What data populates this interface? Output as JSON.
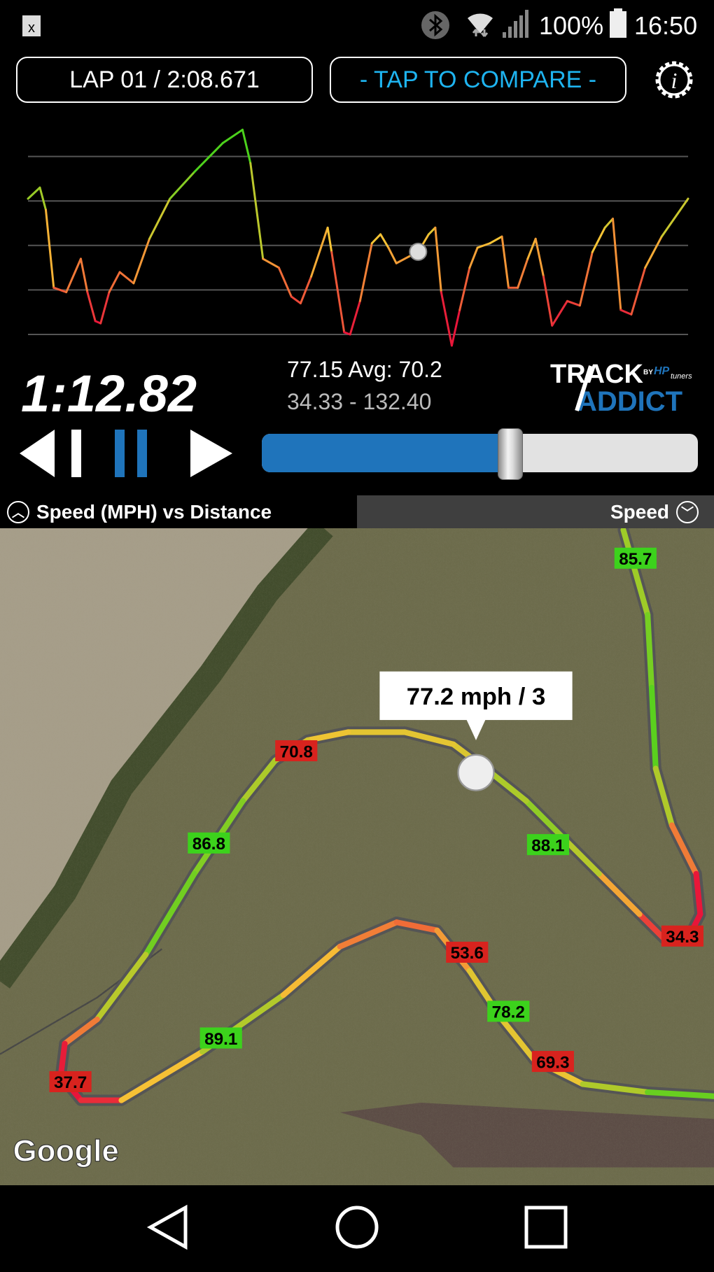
{
  "status_bar": {
    "battery": "100%",
    "time": "16:50",
    "icons": [
      "notification-x-icon",
      "bluetooth-icon",
      "wifi-icon",
      "signal-icon",
      "battery-icon"
    ]
  },
  "toolbar": {
    "lap_label": "LAP 01 / 2:08.671",
    "compare_label": "- TAP TO COMPARE -",
    "settings_icon": "gear-info-icon"
  },
  "chart_data": {
    "type": "line",
    "xlabel": "",
    "ylabel": "",
    "ylim": [
      34.33,
      132.4
    ],
    "gridlines": [
      40,
      60,
      80,
      100,
      120
    ],
    "grid": true,
    "color_scale": {
      "low": "#e8153a",
      "mid": "#f7c435",
      "high": "#4cd21c"
    },
    "x": [
      0,
      1.8,
      2.7,
      3.9,
      5.8,
      8.0,
      9.0,
      10.2,
      11.0,
      12.3,
      13.9,
      16.0,
      18.4,
      21.5,
      25.2,
      29.5,
      32.5,
      33.7,
      35.6,
      38.0,
      39.9,
      41.3,
      42.9,
      45.4,
      46.0,
      47.9,
      48.8,
      50.3,
      52.1,
      53.4,
      54.6,
      55.8,
      57.7,
      59.1,
      60.7,
      61.7,
      62.6,
      64.2,
      65.4,
      66.9,
      68.1,
      70.0,
      71.8,
      72.8,
      74.2,
      75.7,
      76.9,
      78.1,
      79.4,
      81.7,
      83.6,
      85.5,
      87.4,
      88.6,
      89.8,
      91.4,
      93.5,
      96.0,
      100
    ],
    "values": [
      101,
      106,
      96,
      61,
      59,
      74,
      59,
      46,
      45,
      59,
      68,
      63,
      83,
      101,
      113,
      126,
      132,
      117,
      74,
      70,
      57,
      54,
      66,
      88,
      77,
      41,
      40,
      55,
      81,
      85,
      79,
      72,
      75,
      77,
      85,
      88,
      59,
      35,
      51,
      70,
      79,
      81,
      84,
      61,
      61,
      74,
      83,
      66,
      44,
      55,
      53,
      77,
      88,
      92,
      51,
      49,
      70,
      84,
      101
    ],
    "marker": {
      "x": 59.1,
      "y": 77.15
    }
  },
  "playback": {
    "elapsed": "1:12.82",
    "current_avg": "77.15  Avg: 70.2",
    "range": "34.33 - 132.40",
    "progress": 0.57
  },
  "logo": {
    "line1": "TRACK",
    "line2": "ADDICT",
    "by": "BY",
    "brand": "HP",
    "brand2": "tuners"
  },
  "graph_header": {
    "left": "Speed (MPH) vs Distance",
    "right": "Speed"
  },
  "map": {
    "callout": "77.2 mph / 3",
    "attribution": "Google",
    "labels": [
      {
        "t": "85.7",
        "c": "g"
      },
      {
        "t": "70.8",
        "c": "r"
      },
      {
        "t": "86.8",
        "c": "g"
      },
      {
        "t": "88.1",
        "c": "g"
      },
      {
        "t": "34.3",
        "c": "r"
      },
      {
        "t": "53.6",
        "c": "r"
      },
      {
        "t": "78.2",
        "c": "g"
      },
      {
        "t": "89.1",
        "c": "g"
      },
      {
        "t": "69.3",
        "c": "r"
      },
      {
        "t": "37.7",
        "c": "r"
      }
    ]
  },
  "colors": {
    "accent": "#1f74bb",
    "compare": "#1eb4f0",
    "label_green": "#3cd21c",
    "label_red": "#d8231e"
  }
}
